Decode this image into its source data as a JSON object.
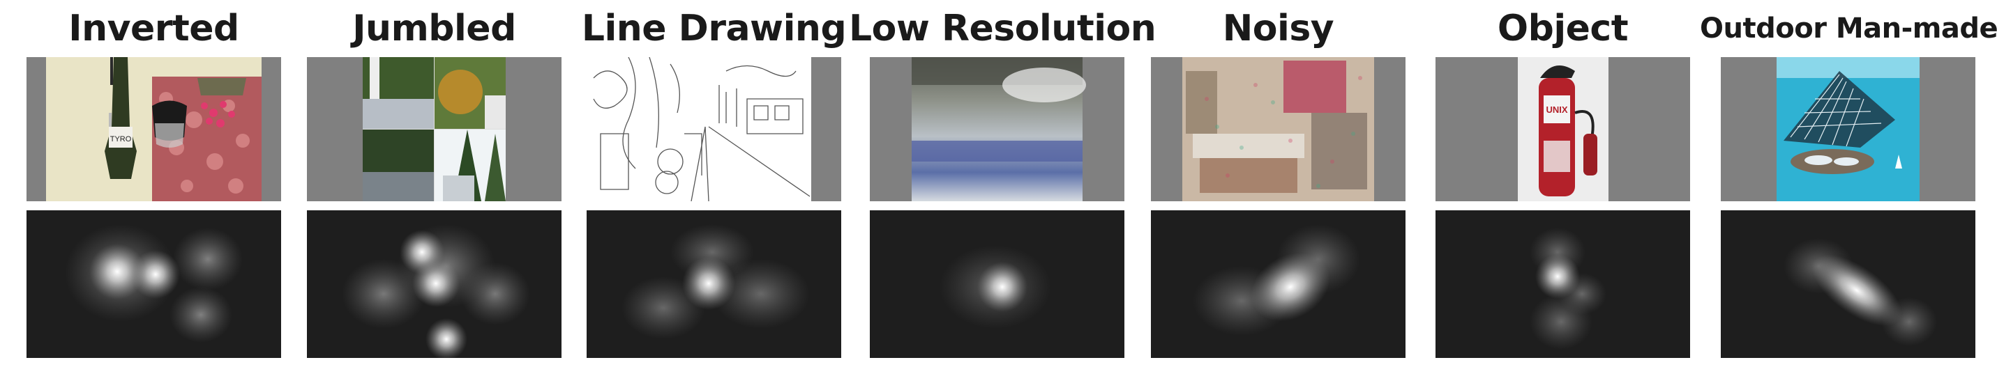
{
  "panels": [
    {
      "title": "Inverted"
    },
    {
      "title": "Jumbled"
    },
    {
      "title": "Line Drawing"
    },
    {
      "title": "Low  Resolution"
    },
    {
      "title": "Noisy"
    },
    {
      "title": "Object"
    },
    {
      "title": "Outdoor Man-made"
    }
  ],
  "photo_labels": {
    "bottle_label": "TYRO",
    "extinguisher_label": "UNIX"
  },
  "colors": {
    "panel_gray": "#808080",
    "heatmap_background": "#1e1e1e",
    "title_text": "#1a1a1a"
  }
}
